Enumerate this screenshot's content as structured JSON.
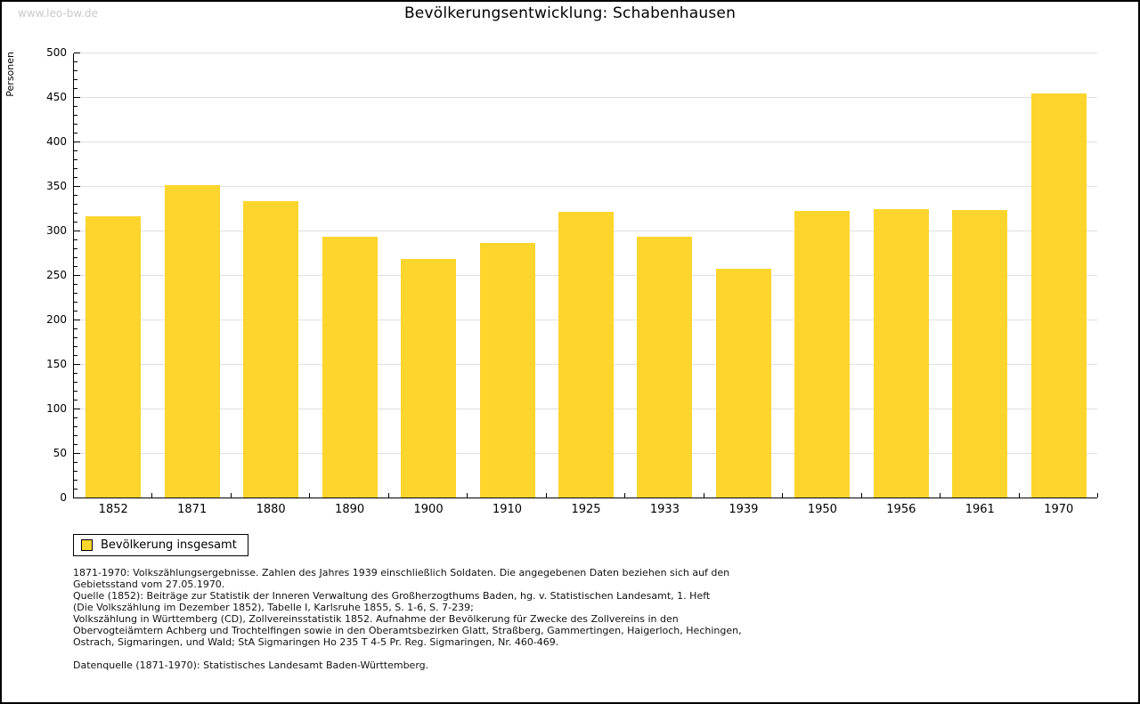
{
  "watermark": "www.leo-bw.de",
  "chart_data": {
    "type": "bar",
    "title": "Bevölkerungsentwicklung: Schabenhausen",
    "xlabel": "",
    "ylabel": "Personen",
    "ylim": [
      0,
      500
    ],
    "ytick_step": 50,
    "y_minor_step": 10,
    "grid": true,
    "legend_position": "bottom-left",
    "categories": [
      "1852",
      "1871",
      "1880",
      "1890",
      "1900",
      "1910",
      "1925",
      "1933",
      "1939",
      "1950",
      "1956",
      "1961",
      "1970"
    ],
    "series": [
      {
        "name": "Bevölkerung insgesamt",
        "values": [
          316,
          351,
          333,
          293,
          268,
          286,
          321,
          293,
          257,
          322,
          324,
          323,
          454
        ],
        "color": "#FDD52D"
      }
    ]
  },
  "legend": {
    "label": "Bevölkerung insgesamt",
    "swatch_color": "#FDD52D"
  },
  "footer": {
    "lines": [
      "1871-1970: Volkszählungsergebnisse. Zahlen des Jahres 1939 einschließlich Soldaten. Die angegebenen Daten beziehen sich auf den",
      "Gebietsstand vom 27.05.1970.",
      "Quelle (1852): Beiträge zur Statistik der Inneren Verwaltung des Großherzogthums Baden, hg. v. Statistischen Landesamt, 1. Heft",
      "(Die Volkszählung im Dezember 1852), Tabelle I, Karlsruhe 1855, S. 1-6, S. 7-239;",
      "Volkszählung in Württemberg (CD), Zollvereinsstatistik 1852. Aufnahme der Bevölkerung für Zwecke des Zollvereins in den",
      "Obervogteiämtern Achberg und Trochtelfingen sowie in den Oberamtsbezirken Glatt, Straßberg, Gammertingen, Haigerloch, Hechingen,",
      "Ostrach, Sigmaringen, und Wald; StA Sigmaringen Ho 235 T 4-5 Pr. Reg. Sigmaringen, Nr. 460-469."
    ],
    "datasource": "Datenquelle (1871-1970): Statistisches Landesamt Baden-Württemberg."
  },
  "colors": {
    "bar": "#FDD52D",
    "gridline": "#E0E0E0",
    "axis": "#000000",
    "watermark": "#C9C9C9",
    "background": "#FFFFFF"
  }
}
